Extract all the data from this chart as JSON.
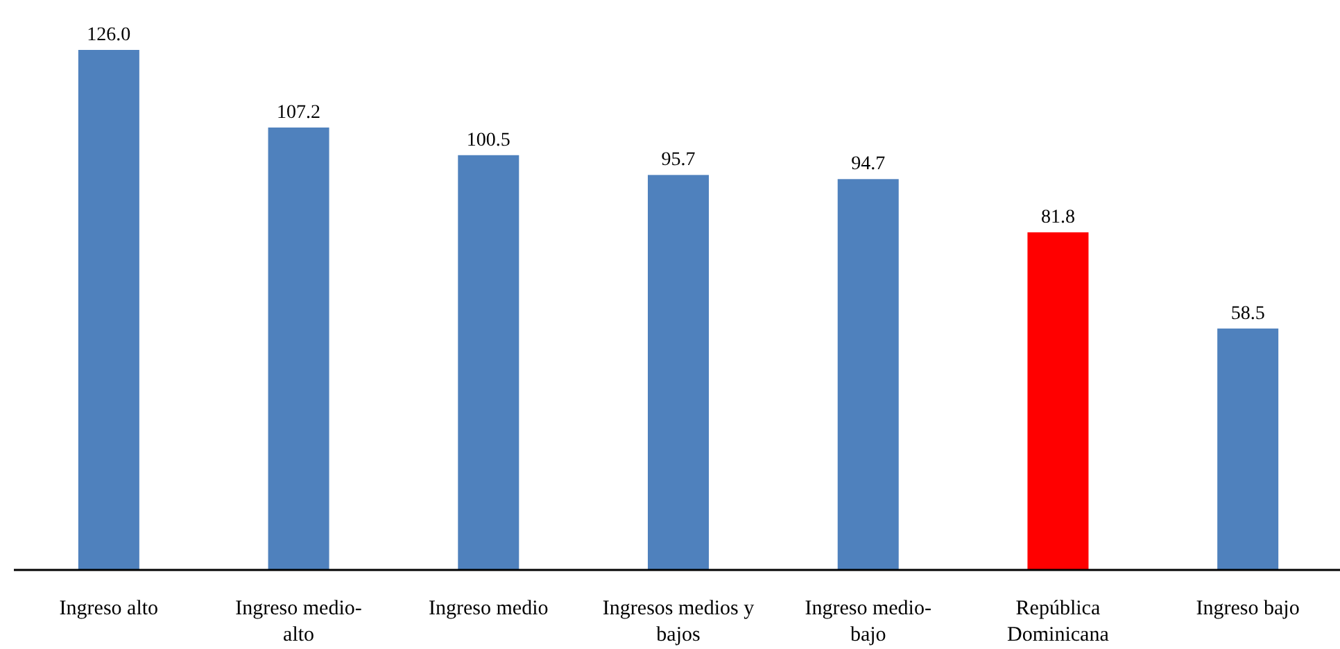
{
  "chart_data": {
    "type": "bar",
    "categories": [
      "Ingreso alto",
      "Ingreso medio-alto",
      "Ingreso medio",
      "Ingresos medios y bajos",
      "Ingreso medio-bajo",
      "República Dominicana",
      "Ingreso bajo"
    ],
    "values": [
      126.0,
      107.2,
      100.5,
      95.7,
      94.7,
      81.8,
      58.5
    ],
    "colors": [
      "#4f81bd",
      "#4f81bd",
      "#4f81bd",
      "#4f81bd",
      "#4f81bd",
      "#ff0000",
      "#4f81bd"
    ],
    "value_labels": [
      "126.0",
      "107.2",
      "100.5",
      "95.7",
      "94.7",
      "81.8",
      "58.5"
    ],
    "relative": false
  }
}
